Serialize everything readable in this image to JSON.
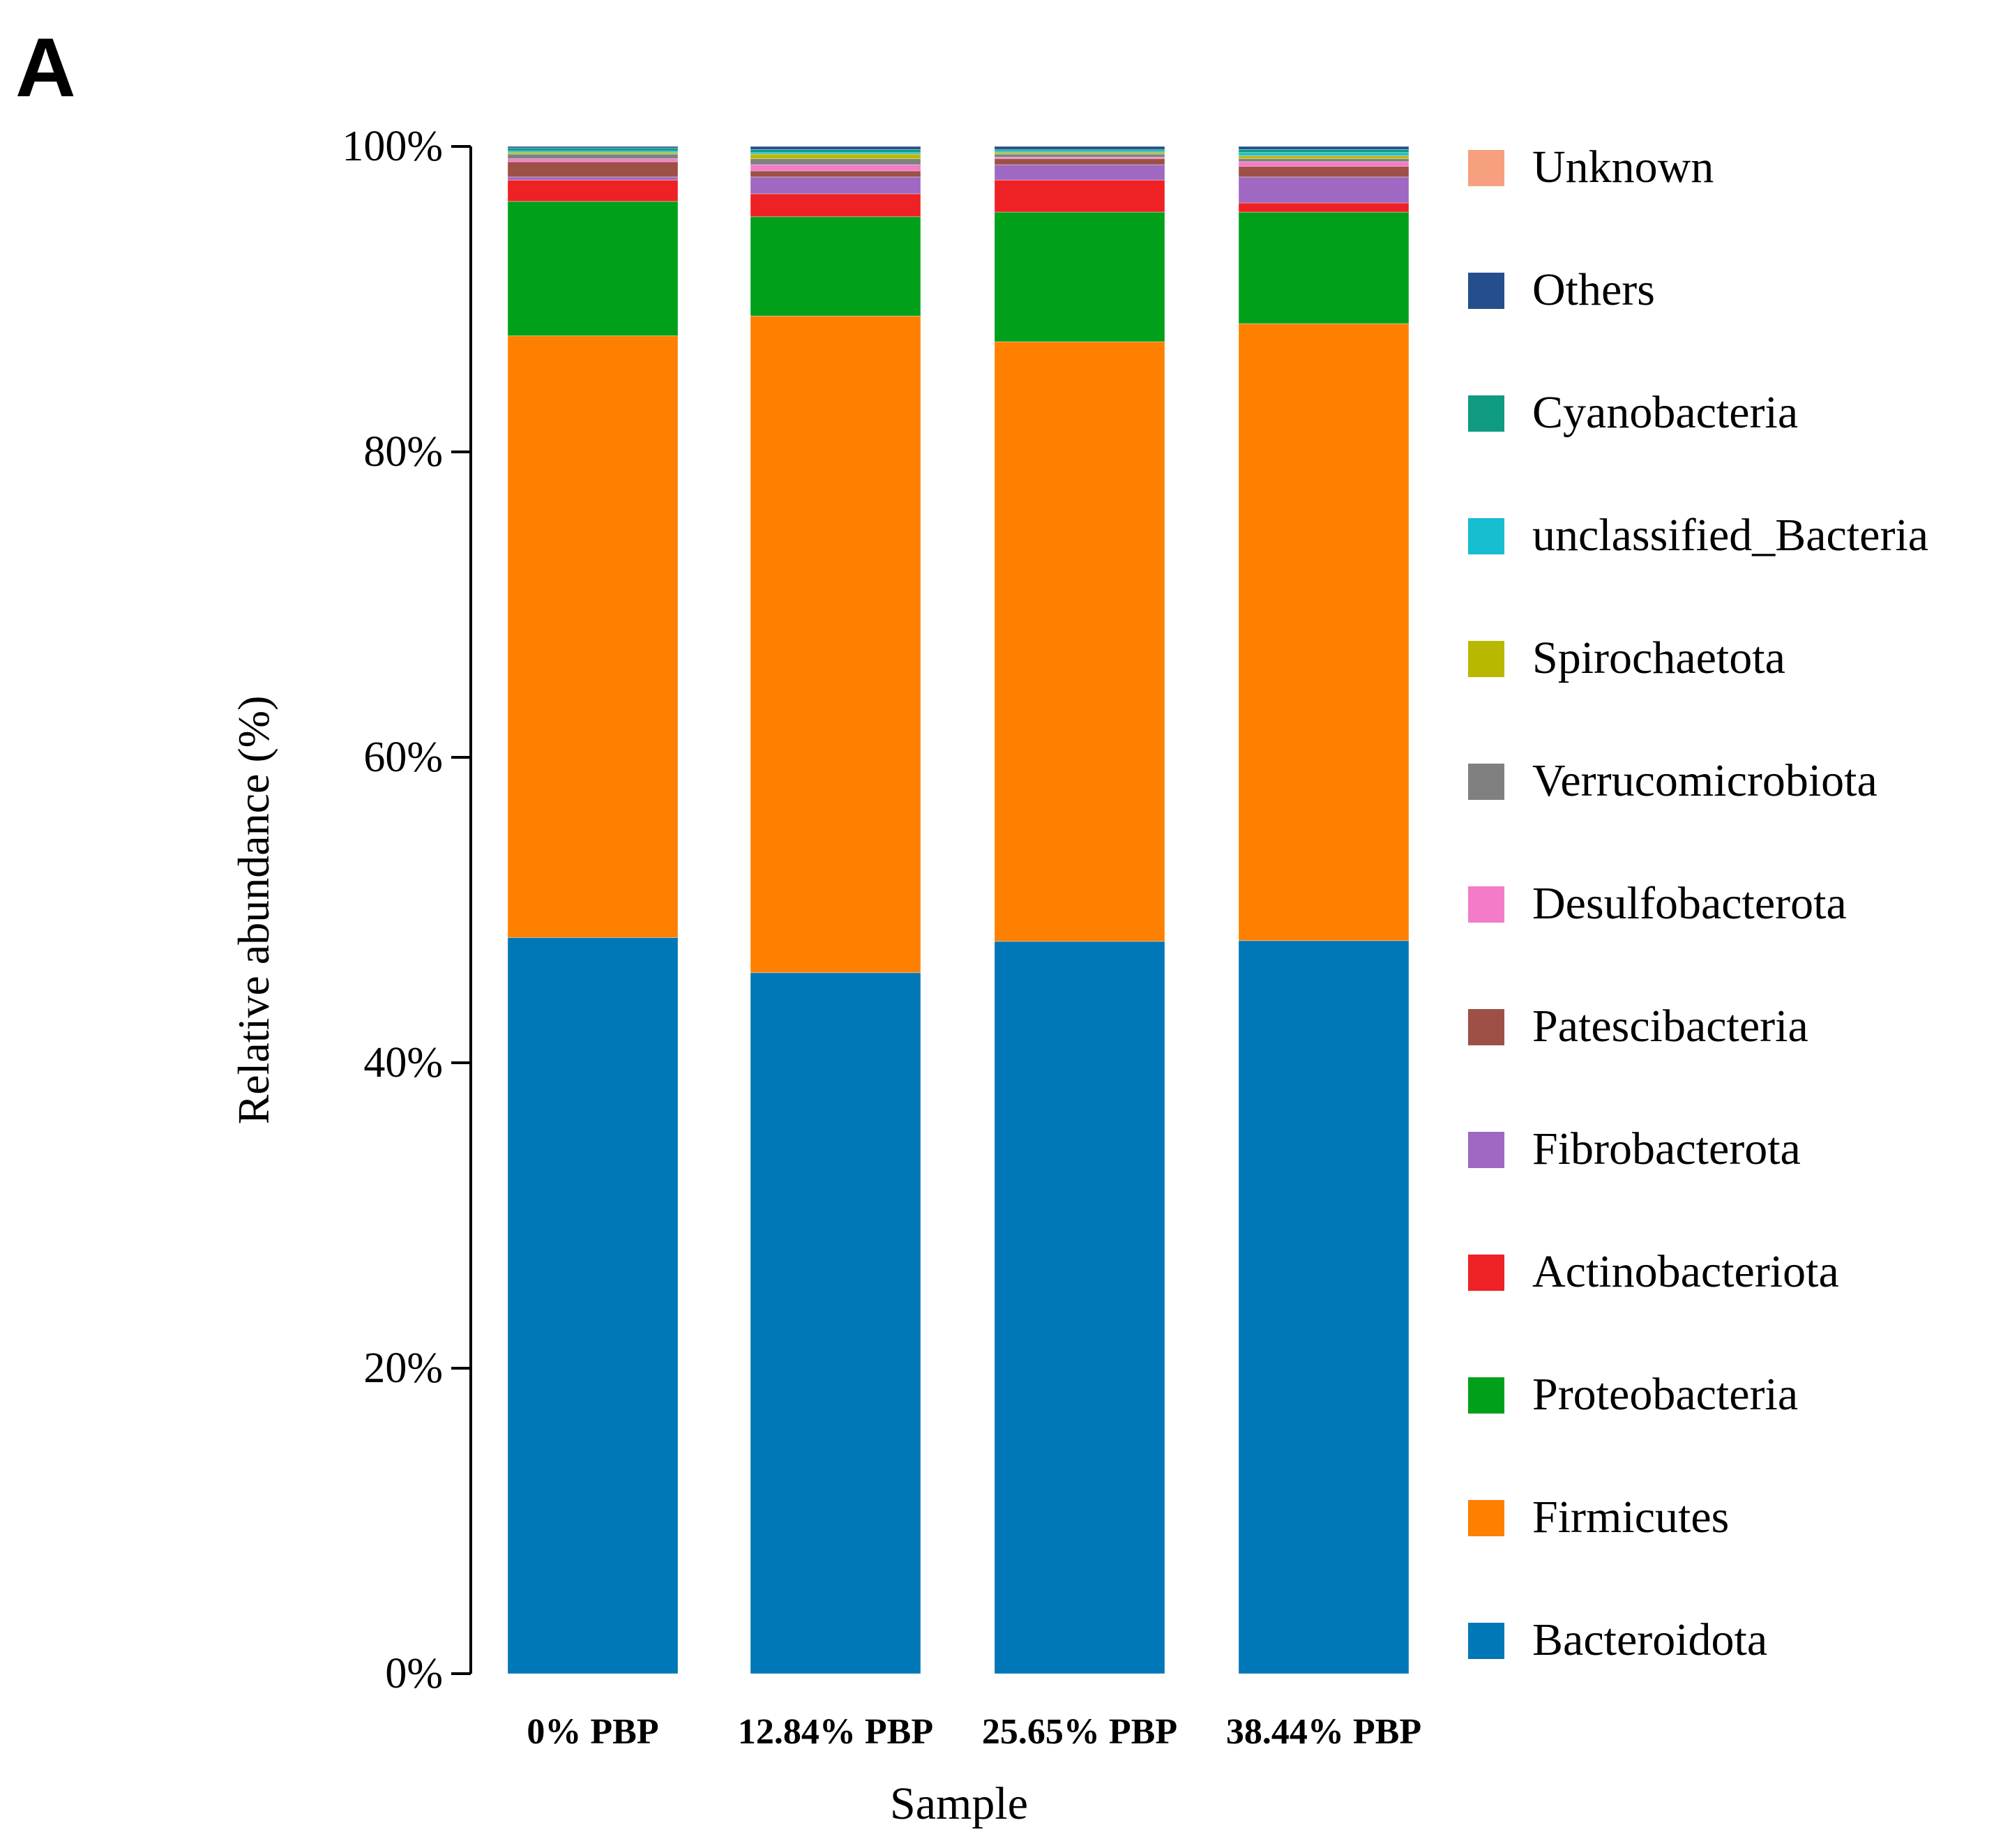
{
  "panel_label": "A",
  "chart_data": {
    "type": "bar",
    "stacked": true,
    "title": "",
    "xlabel": "Sample",
    "ylabel": "Relative abundance (%)",
    "ylim": [
      0,
      100
    ],
    "y_ticks": [
      0,
      20,
      40,
      60,
      80,
      100
    ],
    "y_tick_labels": [
      "0%",
      "20%",
      "40%",
      "60%",
      "80%",
      "100%"
    ],
    "categories": [
      "0% PBP",
      "12.84% PBP",
      "25.65% PBP",
      "38.44% PBP"
    ],
    "legend_position": "right",
    "series": [
      {
        "name": "Bacteroidota",
        "color": "#0077b6",
        "values": [
          48.2,
          45.9,
          48.0,
          48.0
        ]
      },
      {
        "name": "Firmicutes",
        "color": "#ff7f00",
        "values": [
          39.4,
          43.0,
          39.3,
          40.4
        ]
      },
      {
        "name": "Proteobacteria",
        "color": "#00a01a",
        "values": [
          8.8,
          6.5,
          8.5,
          7.3
        ]
      },
      {
        "name": "Actinobacteriota",
        "color": "#ee2124",
        "values": [
          1.4,
          1.5,
          2.1,
          0.6
        ]
      },
      {
        "name": "Fibrobacterota",
        "color": "#9e68c3",
        "values": [
          0.2,
          1.1,
          1.0,
          1.7
        ]
      },
      {
        "name": "Patescibacteria",
        "color": "#9e5046",
        "values": [
          1.0,
          0.4,
          0.4,
          0.7
        ]
      },
      {
        "name": "Desulfobacterota",
        "color": "#f47bc8",
        "values": [
          0.2,
          0.4,
          0.1,
          0.3
        ]
      },
      {
        "name": "Verrucomicrobiota",
        "color": "#808080",
        "values": [
          0.3,
          0.4,
          0.2,
          0.2
        ]
      },
      {
        "name": "Spirochaetota",
        "color": "#b8b800",
        "values": [
          0.1,
          0.3,
          0.1,
          0.2
        ]
      },
      {
        "name": "unclassified_Bacteria",
        "color": "#17becf",
        "values": [
          0.1,
          0.1,
          0.1,
          0.2
        ]
      },
      {
        "name": "Cyanobacteria",
        "color": "#0f9a82",
        "values": [
          0.2,
          0.2,
          0.1,
          0.2
        ]
      },
      {
        "name": "Others",
        "color": "#244f8c",
        "values": [
          0.1,
          0.2,
          0.2,
          0.2
        ]
      },
      {
        "name": "Unknown",
        "color": "#f7a07f",
        "values": [
          0.0,
          0.0,
          0.0,
          0.0
        ]
      }
    ]
  }
}
